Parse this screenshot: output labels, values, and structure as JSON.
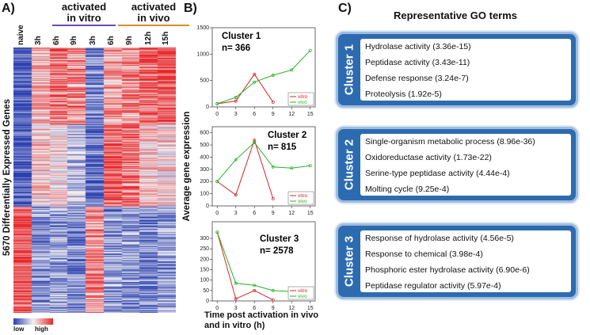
{
  "panelA": {
    "letter": "A)",
    "group_invitro": "activated\nin vitro",
    "group_invivo": "activated\nin vivo",
    "columns": [
      "naive",
      "3h",
      "6h",
      "9h",
      "3h",
      "6h",
      "9h",
      "12h",
      "15h"
    ],
    "ylabel": "5670 Differentially Expressed Genes",
    "legend_low": "low",
    "legend_high": "high",
    "colors": {
      "low": "#2b3fb0",
      "mid": "#f2f2f2",
      "high": "#e8262a",
      "invitro_line": "#6a4bb5",
      "invivo_line": "#e08a2a"
    }
  },
  "panelB": {
    "letter": "B)",
    "xlabel": "Time post activation in vivo\nand in vitro (h)",
    "ylabel": "Average gene expression",
    "colors": {
      "vitro": "#d62728",
      "vivo": "#22b422"
    }
  },
  "chart_data": [
    {
      "type": "line",
      "title": "Cluster 1",
      "subtitle": "n= 366",
      "x": [
        0,
        3,
        6,
        9,
        12,
        15
      ],
      "xticks": [
        "0",
        "3",
        "6",
        "9",
        "12",
        "15"
      ],
      "ylim": [
        0,
        1500
      ],
      "yticks": [
        "0",
        "500",
        "1000",
        "1500"
      ],
      "series": [
        {
          "name": "vitro",
          "x": [
            0,
            3,
            6,
            9
          ],
          "values": [
            60,
            110,
            620,
            90
          ]
        },
        {
          "name": "vivo",
          "x": [
            0,
            3,
            6,
            9,
            12,
            15
          ],
          "values": [
            60,
            180,
            470,
            600,
            700,
            1070
          ]
        }
      ],
      "legend": [
        "vitro",
        "vivo"
      ]
    },
    {
      "type": "line",
      "title": "Cluster 2",
      "subtitle": "n= 815",
      "x": [
        0,
        3,
        6,
        9,
        12,
        15
      ],
      "xticks": [
        "0",
        "3",
        "6",
        "9",
        "12",
        "15"
      ],
      "ylim": [
        0,
        650
      ],
      "yticks": [
        "0",
        "100",
        "200",
        "300",
        "400",
        "500",
        "600"
      ],
      "series": [
        {
          "name": "vitro",
          "x": [
            0,
            3,
            6,
            9
          ],
          "values": [
            200,
            90,
            540,
            60
          ]
        },
        {
          "name": "vivo",
          "x": [
            0,
            3,
            6,
            9,
            12,
            15
          ],
          "values": [
            200,
            380,
            520,
            320,
            310,
            330
          ]
        }
      ],
      "legend": [
        "vitro",
        "vivo"
      ]
    },
    {
      "type": "line",
      "title": "Cluster 3",
      "subtitle": "n= 2578",
      "x": [
        0,
        3,
        6,
        9,
        12,
        15
      ],
      "xticks": [
        "0",
        "3",
        "6",
        "9",
        "12",
        "15"
      ],
      "ylim": [
        0,
        380
      ],
      "yticks": [
        "0",
        "50",
        "100",
        "150",
        "200",
        "250",
        "300"
      ],
      "series": [
        {
          "name": "vitro",
          "x": [
            0,
            3,
            6,
            9
          ],
          "values": [
            330,
            10,
            50,
            5
          ]
        },
        {
          "name": "vivo",
          "x": [
            0,
            3,
            6,
            9,
            12,
            15
          ],
          "values": [
            330,
            85,
            75,
            50,
            45,
            48
          ]
        }
      ],
      "legend": [
        "vitro",
        "vivo"
      ]
    }
  ],
  "panelC": {
    "letter": "C)",
    "heading": "Representative GO terms",
    "clusters": [
      {
        "label": "Cluster 1",
        "terms": [
          "Hydrolase activity (3.36e-15)",
          "Peptidase activity (3.43e-11)",
          "Defense response (3.24e-7)",
          "Proteolysis (1.92e-5)"
        ]
      },
      {
        "label": "Cluster 2",
        "terms": [
          "Single-organism metabolic process (8.96e-36)",
          "Oxidoreductase activity (1.73e-22)",
          "Serine-type peptidase activity (4.44e-4)",
          "Molting cycle (9.25e-4)"
        ]
      },
      {
        "label": "Cluster 3",
        "terms": [
          "Response of hydrolase activity (4.56e-5)",
          "Response to chemical (3.98e-4)",
          "Phosphoric ester hydrolase activity (6.90e-6)",
          "Peptidase regulator activity (5.97e-4)"
        ]
      }
    ]
  }
}
